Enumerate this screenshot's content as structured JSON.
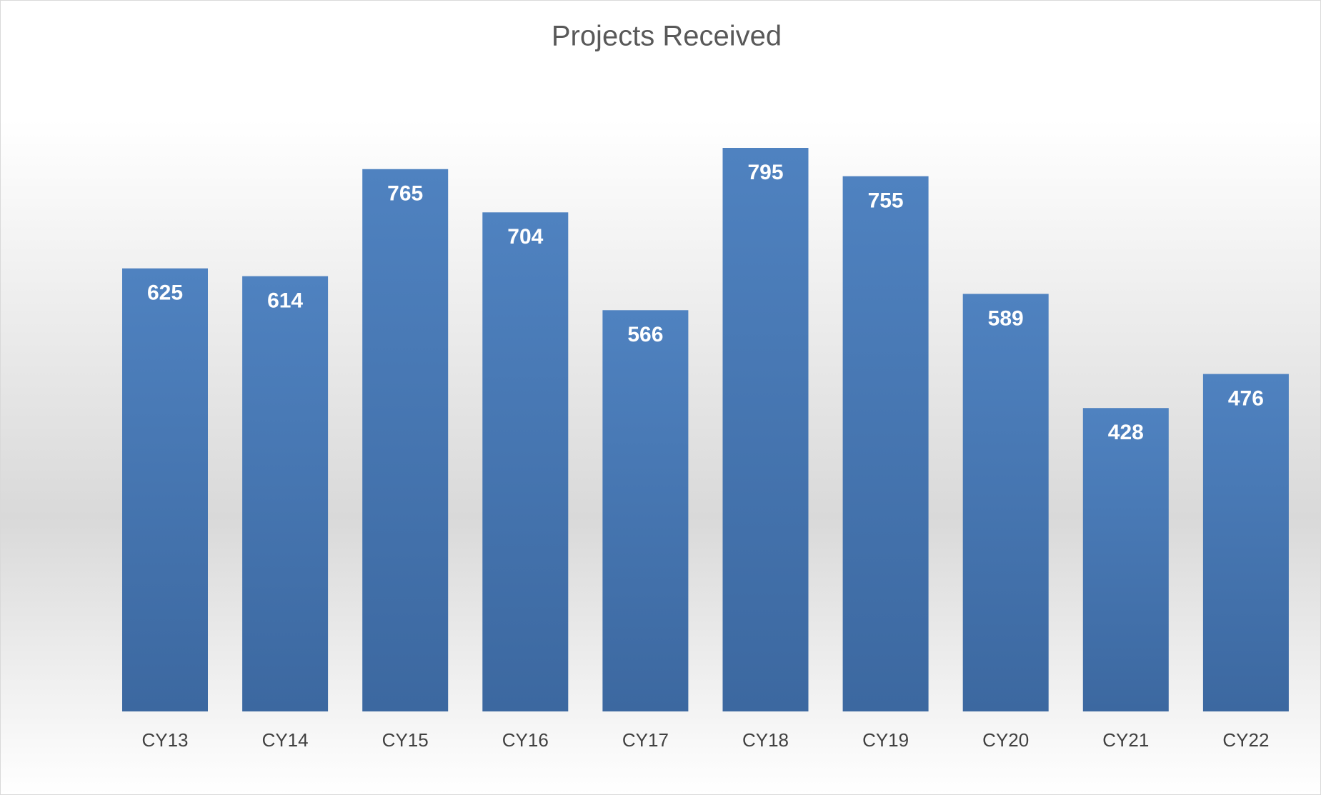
{
  "chart_data": {
    "type": "bar",
    "title": "Projects Received",
    "categories": [
      "CY13",
      "CY14",
      "CY15",
      "CY16",
      "CY17",
      "CY18",
      "CY19",
      "CY20",
      "CY21",
      "CY22"
    ],
    "values": [
      625,
      614,
      765,
      704,
      566,
      795,
      755,
      589,
      428,
      476
    ],
    "color": "#4a7dbd"
  }
}
